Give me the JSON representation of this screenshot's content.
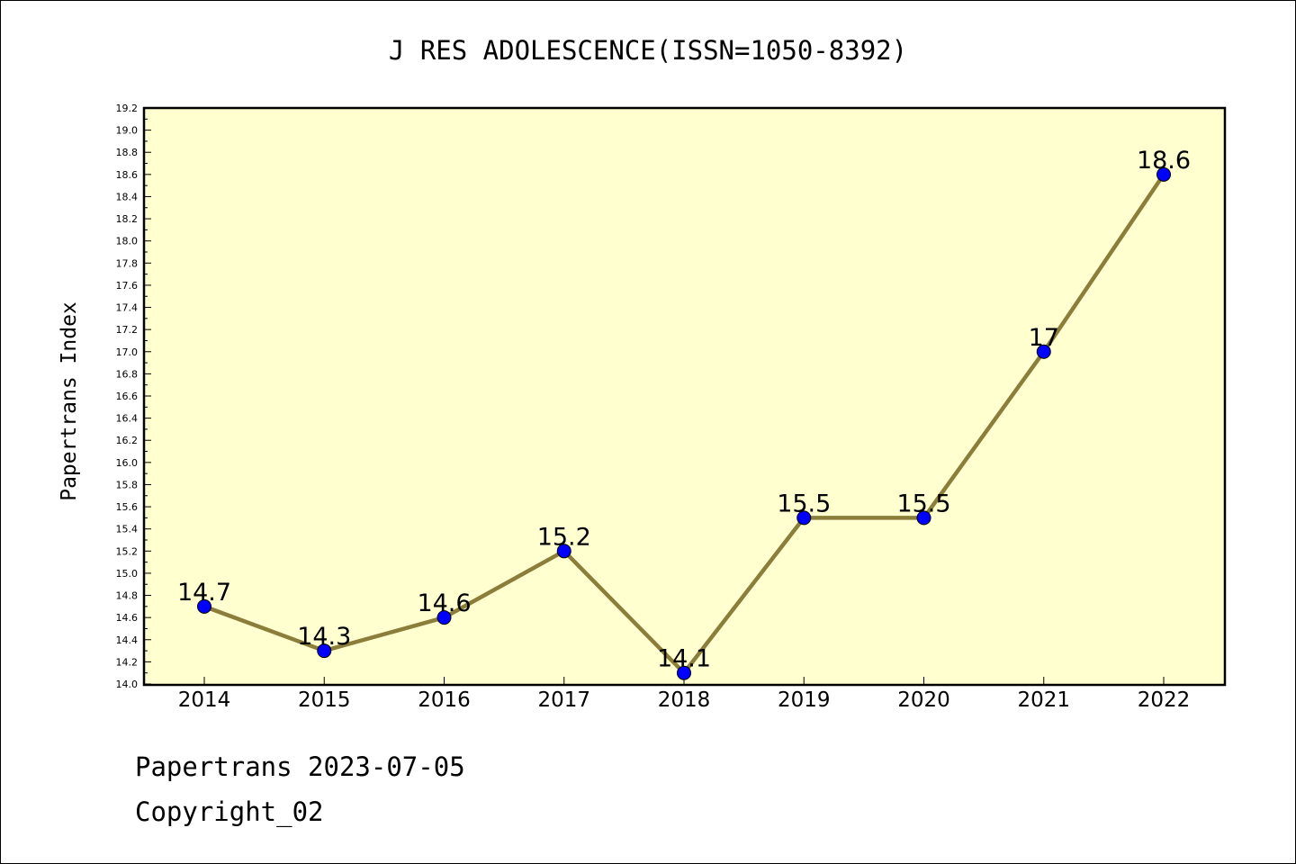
{
  "chart_data": {
    "type": "line",
    "title": "J RES ADOLESCENCE(ISSN=1050-8392)",
    "ylabel": "Papertrans Index",
    "xlabel": "",
    "categories": [
      "2014",
      "2015",
      "2016",
      "2017",
      "2018",
      "2019",
      "2020",
      "2021",
      "2022"
    ],
    "series": [
      {
        "values": [
          14.7,
          14.3,
          14.6,
          15.2,
          14.1,
          15.5,
          15.5,
          17.0,
          18.6
        ]
      }
    ],
    "data_labels": [
      "14.7",
      "14.3",
      "14.6",
      "15.2",
      "14.1",
      "15.5",
      "15.5",
      "17",
      "18.6"
    ],
    "ylim": [
      14.0,
      19.2
    ],
    "y_tick_labels": [
      "14.0",
      "14.2",
      "14.4",
      "14.6",
      "14.8",
      "15.0",
      "15.2",
      "15.4",
      "15.6",
      "15.8",
      "16.0",
      "16.2",
      "16.4",
      "16.6",
      "16.8",
      "17.0",
      "17.2",
      "17.4",
      "17.6",
      "17.8",
      "18.0",
      "18.2",
      "18.4",
      "18.6",
      "18.8",
      "19.0",
      "19.2"
    ],
    "grid": false,
    "colors": {
      "plot_background": "#ffffd0",
      "line": "#8b7d3a",
      "marker": "#0000ff"
    }
  },
  "footer": {
    "line1": "Papertrans 2023-07-05",
    "line2": "Copyright_02"
  }
}
